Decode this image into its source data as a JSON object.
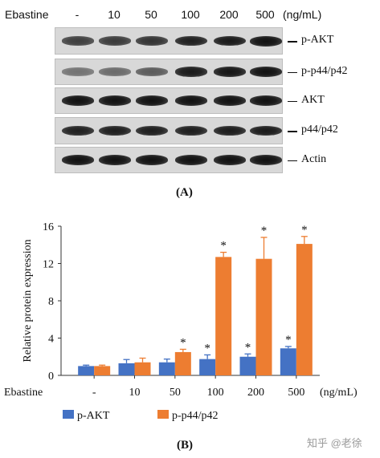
{
  "panel_a": {
    "row_prefix": "Ebastine",
    "unit": "(ng/mL)",
    "columns": [
      "-",
      "10",
      "50",
      "100",
      "200",
      "500"
    ],
    "blots": [
      {
        "label": "p-AKT",
        "intensities": [
          0.7,
          0.72,
          0.78,
          0.9,
          0.95,
          1.0
        ]
      },
      {
        "label": "p-p44/p42",
        "intensities": [
          0.35,
          0.4,
          0.5,
          0.95,
          0.97,
          1.0
        ]
      },
      {
        "label": "AKT",
        "intensities": [
          1.0,
          1.0,
          1.0,
          1.0,
          1.0,
          1.0
        ]
      },
      {
        "label": "p44/p42",
        "intensities": [
          0.9,
          0.92,
          0.92,
          0.92,
          0.93,
          0.95
        ]
      },
      {
        "label": "Actin",
        "intensities": [
          1.0,
          1.0,
          1.0,
          1.0,
          1.0,
          1.0
        ]
      }
    ],
    "caption": "(A)"
  },
  "chart_data": {
    "type": "bar",
    "ylabel": "Relative protein expression",
    "ylim": [
      0,
      16
    ],
    "yticks": [
      "0",
      "4",
      "8",
      "12",
      "16"
    ],
    "xlabel_prefix": "Ebastine",
    "xunit": "(ng/mL)",
    "categories": [
      "-",
      "10",
      "50",
      "100",
      "200",
      "500"
    ],
    "series": [
      {
        "name": "p-AKT",
        "color": "#4472c4",
        "values": [
          1.0,
          1.3,
          1.4,
          1.75,
          2.0,
          2.9
        ],
        "errors": [
          0.1,
          0.4,
          0.35,
          0.45,
          0.3,
          0.2
        ],
        "significant": [
          false,
          false,
          false,
          true,
          true,
          true
        ]
      },
      {
        "name": "p-p44/p42",
        "color": "#ed7d31",
        "values": [
          1.0,
          1.4,
          2.5,
          12.7,
          12.5,
          14.1
        ],
        "errors": [
          0.1,
          0.45,
          0.3,
          0.5,
          2.3,
          0.8
        ],
        "significant": [
          false,
          false,
          true,
          true,
          true,
          true
        ]
      }
    ],
    "significance_mark": "*",
    "legend_position": "bottom",
    "caption": "(B)"
  },
  "watermark": "知乎 @老徐"
}
